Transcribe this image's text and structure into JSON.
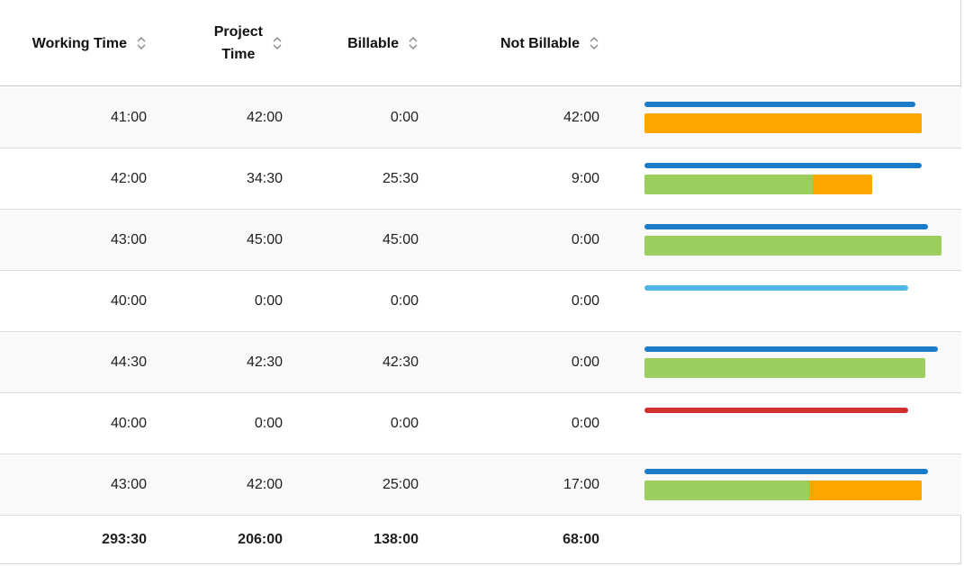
{
  "columns": {
    "working_time": {
      "line1": "Working Time",
      "line2": ""
    },
    "project_time": {
      "line1": "Project",
      "line2": "Time"
    },
    "billable": {
      "line1": "Billable",
      "line2": ""
    },
    "not_billable": {
      "line1": "Not Billable",
      "line2": ""
    }
  },
  "colors": {
    "blue": "#1a7cc9",
    "light_blue": "#4fb6e6",
    "red": "#d32f2f",
    "green": "#9bcd5f",
    "orange": "#ffa500"
  },
  "rows": [
    {
      "working": "41:00",
      "project": "42:00",
      "billable": "0:00",
      "not_billable": "42:00",
      "top_fraction": 0.911,
      "top_color": "blue",
      "billable_fraction": 0.0,
      "not_billable_fraction": 0.933
    },
    {
      "working": "42:00",
      "project": "34:30",
      "billable": "25:30",
      "not_billable": "9:00",
      "top_fraction": 0.933,
      "top_color": "blue",
      "billable_fraction": 0.567,
      "not_billable_fraction": 0.2
    },
    {
      "working": "43:00",
      "project": "45:00",
      "billable": "45:00",
      "not_billable": "0:00",
      "top_fraction": 0.956,
      "top_color": "blue",
      "billable_fraction": 1.0,
      "not_billable_fraction": 0.0
    },
    {
      "working": "40:00",
      "project": "0:00",
      "billable": "0:00",
      "not_billable": "0:00",
      "top_fraction": 0.889,
      "top_color": "light_blue",
      "billable_fraction": 0.0,
      "not_billable_fraction": 0.0
    },
    {
      "working": "44:30",
      "project": "42:30",
      "billable": "42:30",
      "not_billable": "0:00",
      "top_fraction": 0.989,
      "top_color": "blue",
      "billable_fraction": 0.944,
      "not_billable_fraction": 0.0
    },
    {
      "working": "40:00",
      "project": "0:00",
      "billable": "0:00",
      "not_billable": "0:00",
      "top_fraction": 0.889,
      "top_color": "red",
      "billable_fraction": 0.0,
      "not_billable_fraction": 0.0
    },
    {
      "working": "43:00",
      "project": "42:00",
      "billable": "25:00",
      "not_billable": "17:00",
      "top_fraction": 0.956,
      "top_color": "blue",
      "billable_fraction": 0.556,
      "not_billable_fraction": 0.378
    }
  ],
  "totals": {
    "working": "293:30",
    "project": "206:00",
    "billable": "138:00",
    "not_billable": "68:00"
  }
}
